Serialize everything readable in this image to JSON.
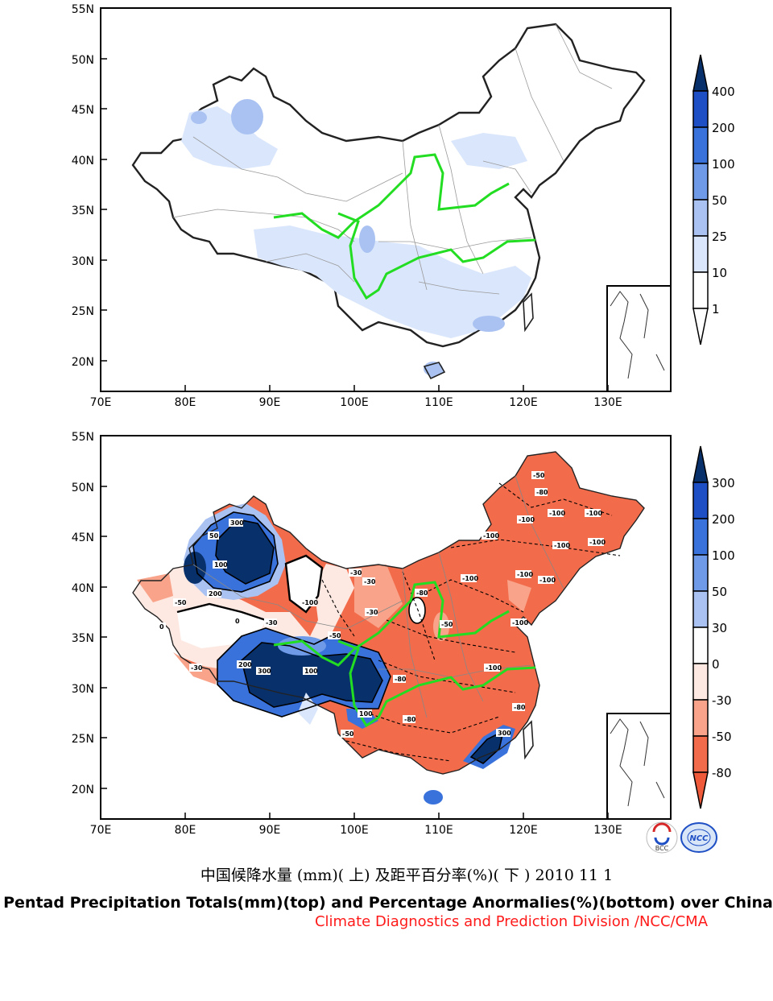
{
  "top_map": {
    "lat_ticks": [
      "55N",
      "50N",
      "45N",
      "40N",
      "35N",
      "30N",
      "25N",
      "20N"
    ],
    "lon_ticks": [
      "70E",
      "80E",
      "90E",
      "100E",
      "110E",
      "120E",
      "130E"
    ],
    "colorbar_labels": [
      "400",
      "200",
      "100",
      "50",
      "25",
      "10",
      "1"
    ],
    "colorbar_colors": [
      "#08306b",
      "#1f4fc4",
      "#3a72dc",
      "#6f9ae8",
      "#a9c2f2",
      "#dae6fb",
      "#ffffff"
    ]
  },
  "bottom_map": {
    "lat_ticks": [
      "55N",
      "50N",
      "45N",
      "40N",
      "35N",
      "30N",
      "25N",
      "20N"
    ],
    "lon_ticks": [
      "70E",
      "80E",
      "90E",
      "100E",
      "110E",
      "120E",
      "130E"
    ],
    "colorbar_labels": [
      "300",
      "200",
      "100",
      "50",
      "30",
      "0",
      "-30",
      "-50",
      "-80"
    ],
    "colorbar_colors": [
      "#08306b",
      "#1f4fc4",
      "#3a72dc",
      "#6f9ae8",
      "#a9c2f2",
      "#ffffff",
      "#fde9e2",
      "#f9a48a",
      "#f26b4a",
      "#ee5a3a"
    ],
    "contour_labels": [
      "300",
      "200",
      "100",
      "50",
      "-30",
      "-50",
      "-80",
      "-100",
      "0"
    ]
  },
  "caption_cn": "中国候降水量 (mm)( 上) 及距平百分率(%)( 下 ) 2010 11 1",
  "caption_en": "Pentad Precipitation Totals(mm)(top) and Percentage Anormalies(%)(bottom) over China",
  "credit": "Climate Diagnostics and Prediction Division /NCC/CMA",
  "logos": {
    "left": "BCC",
    "right": "NCC"
  },
  "colors": {
    "river": "#22dd22",
    "border": "#000000",
    "credit": "#ff1a1a"
  }
}
